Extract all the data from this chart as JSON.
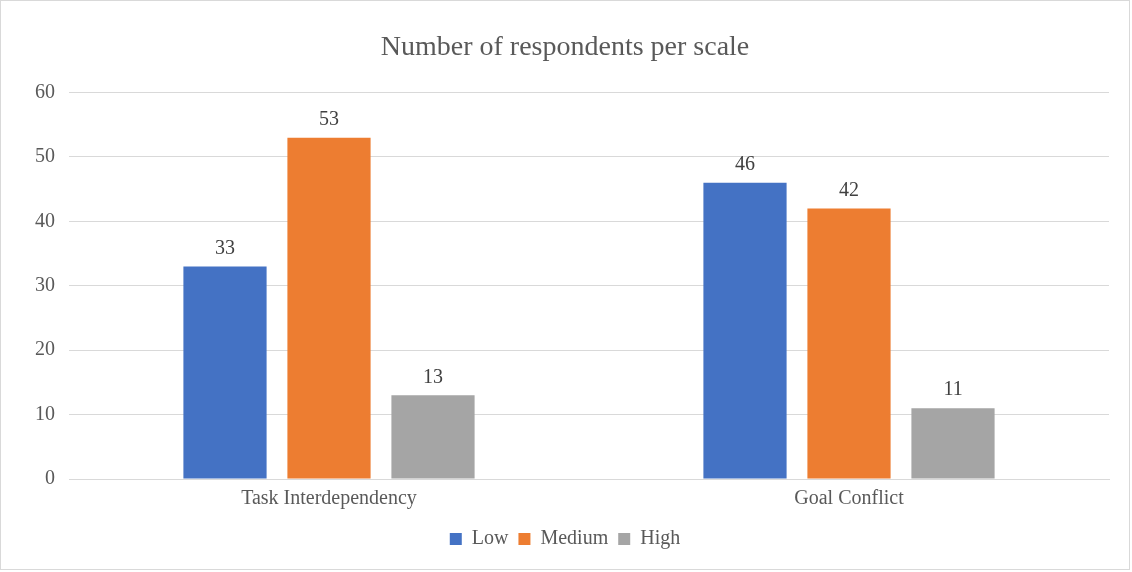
{
  "chart_data": {
    "type": "bar",
    "title": "Number of respondents per scale",
    "categories": [
      "Task Interdependency",
      "Goal Conflict"
    ],
    "series": [
      {
        "name": "Low",
        "color": "#4472c4",
        "values": [
          33,
          46
        ]
      },
      {
        "name": "Medium",
        "color": "#ed7d31",
        "values": [
          53,
          42
        ]
      },
      {
        "name": "High",
        "color": "#a5a5a5",
        "values": [
          13,
          11
        ]
      }
    ],
    "ylim": [
      0,
      60
    ],
    "yticks": [
      0,
      10,
      20,
      30,
      40,
      50,
      60
    ],
    "grid": "y",
    "legend": "bottom",
    "data_labels": true
  }
}
